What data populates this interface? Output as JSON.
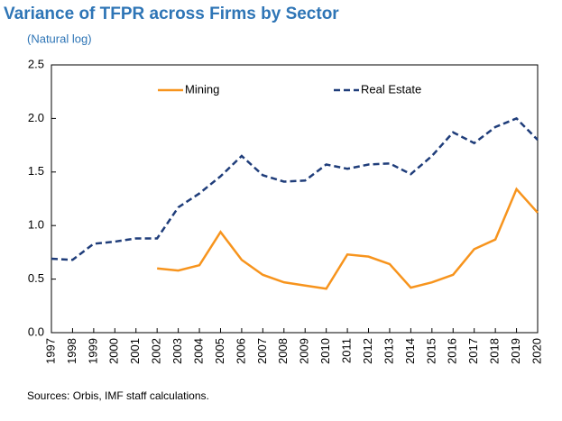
{
  "chart_data": {
    "type": "line",
    "title": "Variance of TFPR across Firms by Sector",
    "subtitle": "(Natural log)",
    "source": "Sources: Orbis, IMF staff calculations.",
    "categories": [
      "1997",
      "1998",
      "1999",
      "2000",
      "2001",
      "2002",
      "2003",
      "2004",
      "2005",
      "2006",
      "2007",
      "2008",
      "2009",
      "2010",
      "2011",
      "2012",
      "2013",
      "2014",
      "2015",
      "2016",
      "2017",
      "2018",
      "2019",
      "2020"
    ],
    "series": [
      {
        "name": "Mining",
        "color": "#f7941d",
        "dash": false,
        "values": [
          null,
          null,
          null,
          null,
          null,
          0.6,
          0.58,
          0.63,
          0.94,
          0.68,
          0.54,
          0.47,
          0.44,
          0.41,
          0.73,
          0.71,
          0.64,
          0.42,
          0.47,
          0.54,
          0.78,
          0.87,
          1.34,
          1.12
        ]
      },
      {
        "name": "Real Estate",
        "color": "#1f3d7a",
        "dash": true,
        "values": [
          0.69,
          0.68,
          0.83,
          0.85,
          0.88,
          0.88,
          1.17,
          1.3,
          1.46,
          1.65,
          1.47,
          1.41,
          1.42,
          1.57,
          1.53,
          1.57,
          1.58,
          1.48,
          1.65,
          1.87,
          1.77,
          1.92,
          2.0,
          1.8
        ]
      }
    ],
    "ylim": [
      0,
      2.5
    ],
    "yticks": [
      {
        "value": 0,
        "label": "0.0"
      },
      0.5,
      {
        "value": 1,
        "label": "1.0"
      },
      1.5,
      {
        "value": 2,
        "label": "2.0"
      },
      2.5
    ],
    "grid": false,
    "legend": "top"
  }
}
